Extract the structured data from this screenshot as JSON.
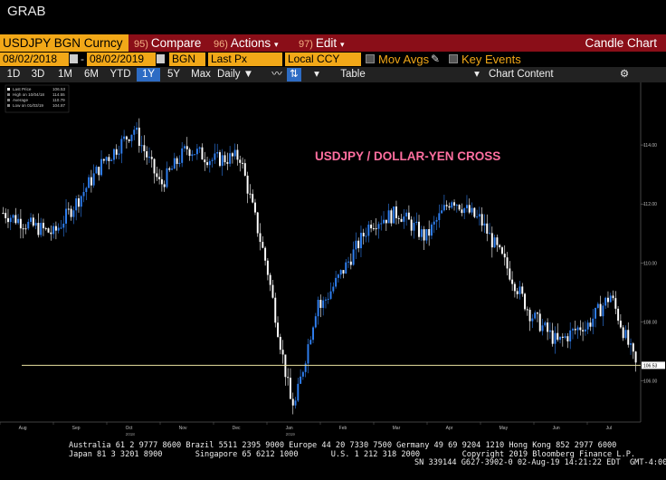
{
  "app": {
    "title": "GRAB"
  },
  "toolbar": {
    "security": "USDJPY BGN Curncy",
    "compare": {
      "num": "95)",
      "label": "Compare"
    },
    "actions": {
      "num": "96)",
      "label": "Actions"
    },
    "edit": {
      "num": "97)",
      "label": "Edit"
    },
    "chart_type": "Candle Chart"
  },
  "controls": {
    "start_date": "08/02/2018",
    "end_date": "08/02/2019",
    "source": "BGN",
    "field": "Last Px",
    "currency": "Local CCY",
    "mov_avgs": "Mov Avgs",
    "key_events": "Key Events"
  },
  "periods": {
    "items": [
      "1D",
      "3D",
      "1M",
      "6M",
      "YTD",
      "1Y",
      "5Y",
      "Max"
    ],
    "selected": "1Y",
    "frequency": "Daily",
    "table": "Table",
    "chart_content": "Chart Content"
  },
  "legend": {
    "last_price": "Last Price",
    "last_price_val": "106.53",
    "high": "High on 10/04/18",
    "high_val": "114.55",
    "average": "Average",
    "average_val": "110.79",
    "low": "Low on 01/03/19",
    "low_val": "104.87"
  },
  "annotation": "USDJPY / DOLLAR-YEN CROSS",
  "last_price_tag": "106.53",
  "colors": {
    "up": "#2f7ff0",
    "down": "#ffffff",
    "ref_line": "#e8e0a0",
    "annotation": "#ff6fa0",
    "bar": "#8a0e18",
    "field": "#f2a818"
  },
  "chart_data": {
    "type": "candlestick",
    "series": "USDJPY BGN Curncy daily",
    "x_labels": [
      "Aug",
      "Sep",
      "Oct",
      "Nov",
      "Dec",
      "Jan",
      "Feb",
      "Mar",
      "Apr",
      "May",
      "Jun",
      "Jul"
    ],
    "year_labels": [
      {
        "month": "Oct",
        "year": "2018"
      },
      {
        "month": "Jan",
        "year": "2019"
      }
    ],
    "y_ticks": [
      "114.00",
      "112.00",
      "110.00",
      "108.00",
      "106.00"
    ],
    "ylim": [
      104.7,
      115.2
    ],
    "reference_line": 106.53,
    "monthly_path": [
      {
        "month": "Aug-18",
        "start": 111.7,
        "mid_high": 111.3,
        "end": 111.0
      },
      {
        "month": "Sep-18",
        "start": 111.1,
        "mid_high": 112.3,
        "end": 113.6
      },
      {
        "month": "Oct-18",
        "start": 113.6,
        "mid_high": 114.55,
        "end": 112.7
      },
      {
        "month": "Nov-18",
        "start": 112.7,
        "mid_high": 113.9,
        "end": 113.5
      },
      {
        "month": "Dec-18",
        "start": 113.5,
        "mid_high": 113.6,
        "end": 110.1
      },
      {
        "month": "Jan-19",
        "start": 109.7,
        "mid_high": 104.87,
        "end": 108.8
      },
      {
        "month": "Feb-19",
        "start": 108.5,
        "mid_high": 109.9,
        "end": 111.4
      },
      {
        "month": "Mar-19",
        "start": 111.4,
        "mid_high": 111.7,
        "end": 110.9
      },
      {
        "month": "Apr-19",
        "start": 110.9,
        "mid_high": 112.2,
        "end": 111.5
      },
      {
        "month": "May-19",
        "start": 111.5,
        "mid_high": 110.0,
        "end": 108.3
      },
      {
        "month": "Jun-19",
        "start": 108.2,
        "mid_high": 107.3,
        "end": 107.9
      },
      {
        "month": "Jul-19",
        "start": 107.8,
        "mid_high": 108.9,
        "end": 106.53
      }
    ]
  },
  "footer": {
    "line1": "Australia 61 2 9777 8600 Brazil 5511 2395 9000 Europe 44 20 7330 7500 Germany 49 69 9204 1210 Hong Kong 852 2977 6000",
    "line2": "Japan 81 3 3201 8900       Singapore 65 6212 1000       U.S. 1 212 318 2000         Copyright 2019 Bloomberg Finance L.P.",
    "line3": "SN 339144 G627-3902-0 02-Aug-19 14:21:22 EDT  GMT-4:00"
  }
}
